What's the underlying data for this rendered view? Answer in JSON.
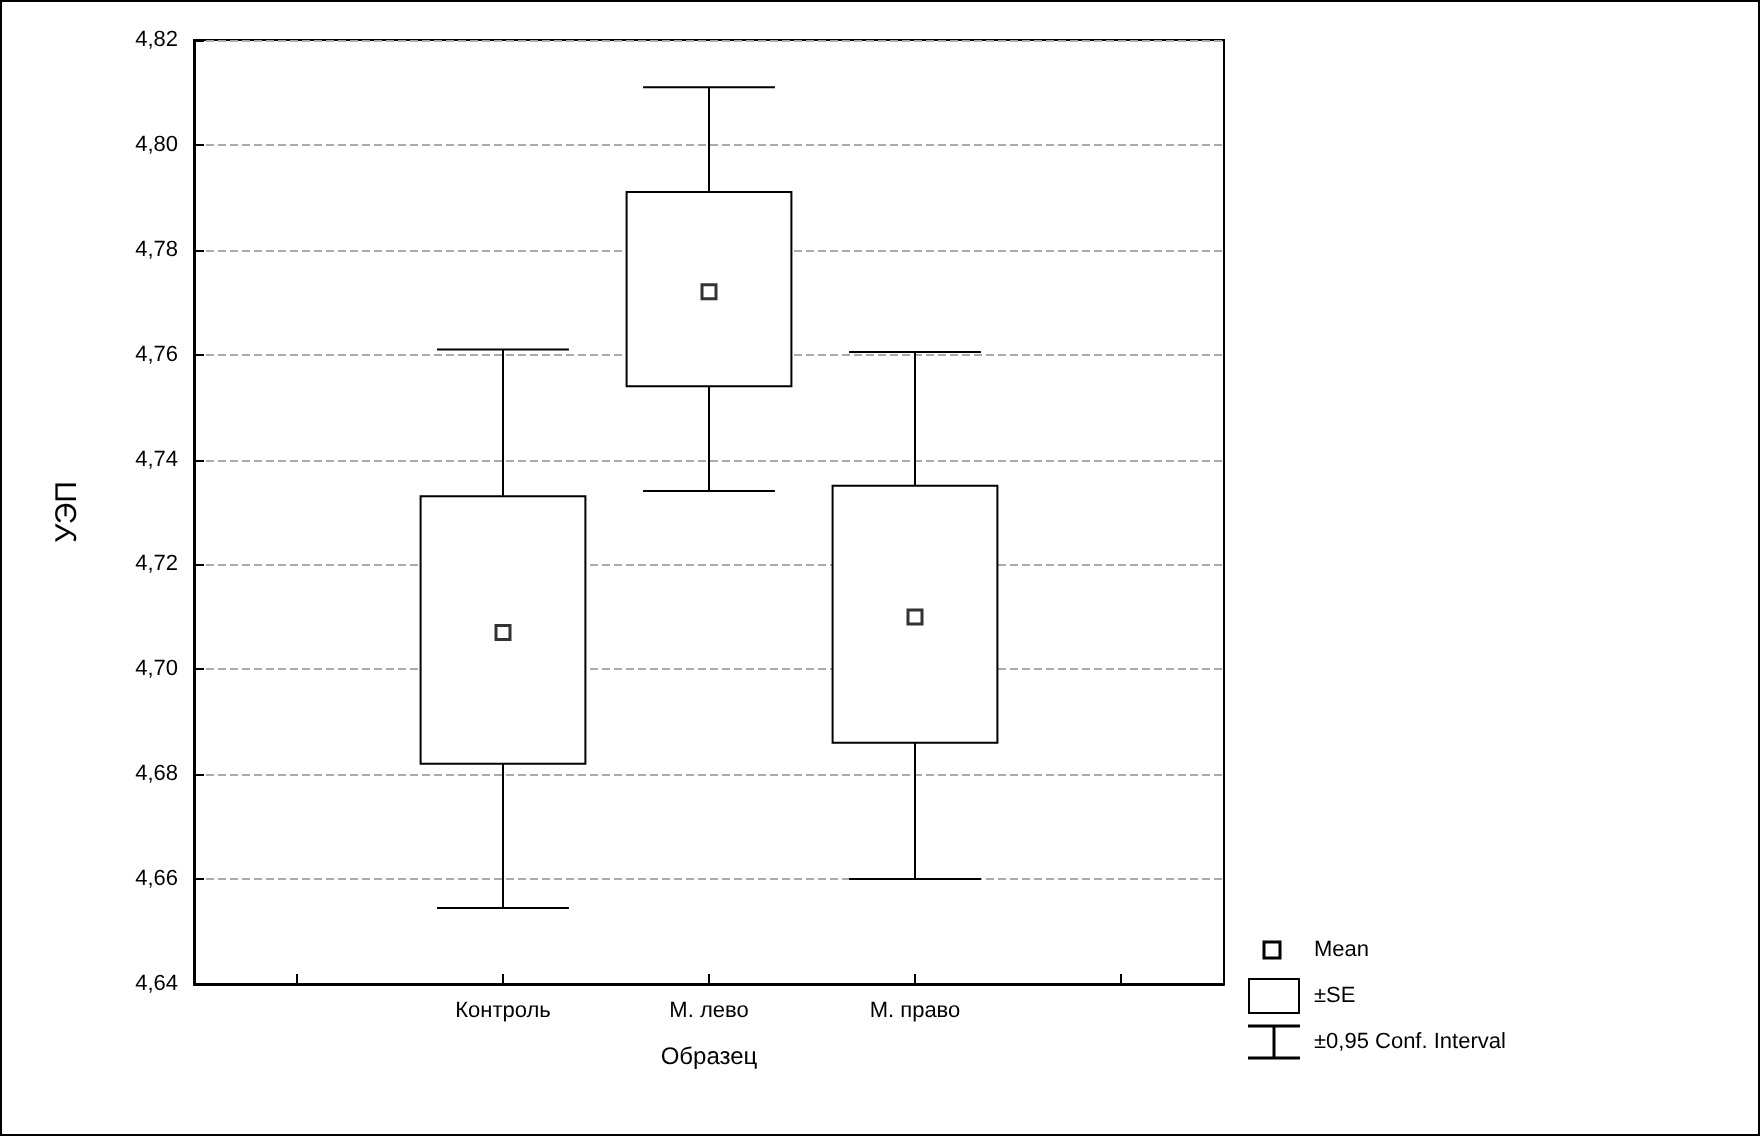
{
  "chart_data": {
    "type": "box",
    "xlabel": "Образец",
    "ylabel": "УЭП",
    "categories": [
      null,
      "Контроль",
      "М. лево",
      "М. право",
      null
    ],
    "boxes": [
      null,
      {
        "low": 4.6545,
        "q1": 4.682,
        "mean": 4.707,
        "q3": 4.733,
        "high": 4.761
      },
      {
        "low": 4.734,
        "q1": 4.754,
        "mean": 4.772,
        "q3": 4.791,
        "high": 4.811
      },
      {
        "low": 4.66,
        "q1": 4.686,
        "mean": 4.71,
        "q3": 4.735,
        "high": 4.7605
      },
      null
    ],
    "annotations": [
      "Mean",
      "±SE",
      "±0,95 Conf. Interval"
    ],
    "ylim": [
      4.64,
      4.82
    ],
    "yticks": [
      {
        "value": 4.64,
        "label": "4,64"
      },
      {
        "value": 4.66,
        "label": "4,66"
      },
      {
        "value": 4.68,
        "label": "4,68"
      },
      {
        "value": 4.7,
        "label": "4,70"
      },
      {
        "value": 4.72,
        "label": "4,72"
      },
      {
        "value": 4.74,
        "label": "4,74"
      },
      {
        "value": 4.76,
        "label": "4,76"
      },
      {
        "value": 4.78,
        "label": "4,78"
      },
      {
        "value": 4.8,
        "label": "4,80"
      },
      {
        "value": 4.82,
        "label": "4,82"
      }
    ],
    "grid": "y",
    "marker": "square"
  }
}
